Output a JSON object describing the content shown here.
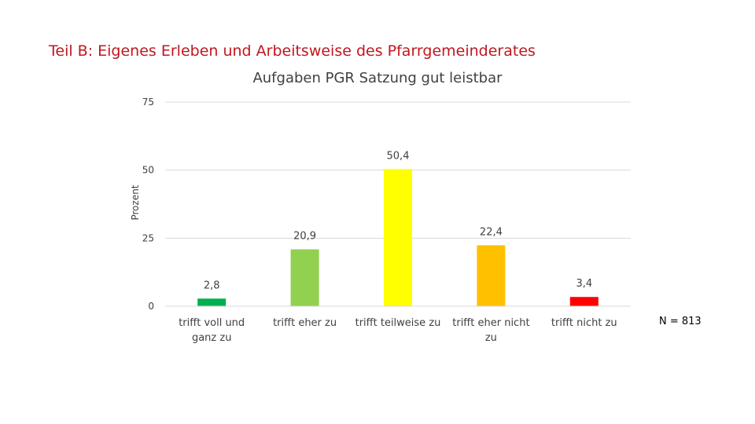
{
  "header": {
    "heading": "Teil B: Eigenes Erleben und Arbeitsweise des Pfarrgemeinderates"
  },
  "sample_note": "N = 813",
  "colors": {
    "heading": "#c0171f",
    "grid": "#d9d9d9",
    "text": "#404040"
  },
  "chart_data": {
    "type": "bar",
    "title": "Aufgaben PGR Satzung gut leistbar",
    "xlabel": "",
    "ylabel": "Prozent",
    "ylim": [
      0,
      75
    ],
    "yticks": [
      0,
      25,
      50,
      75
    ],
    "grid": true,
    "categories": [
      [
        "trifft voll und",
        "ganz zu"
      ],
      [
        "trifft eher zu"
      ],
      [
        "trifft teilweise zu"
      ],
      [
        "trifft eher nicht",
        "zu"
      ],
      [
        "trifft nicht zu"
      ]
    ],
    "values": [
      2.8,
      20.9,
      50.4,
      22.4,
      3.4
    ],
    "value_labels": [
      "2,8",
      "20,9",
      "50,4",
      "22,4",
      "3,4"
    ],
    "bar_colors": [
      "#00b050",
      "#92d050",
      "#ffff00",
      "#ffc000",
      "#ff0000"
    ]
  }
}
